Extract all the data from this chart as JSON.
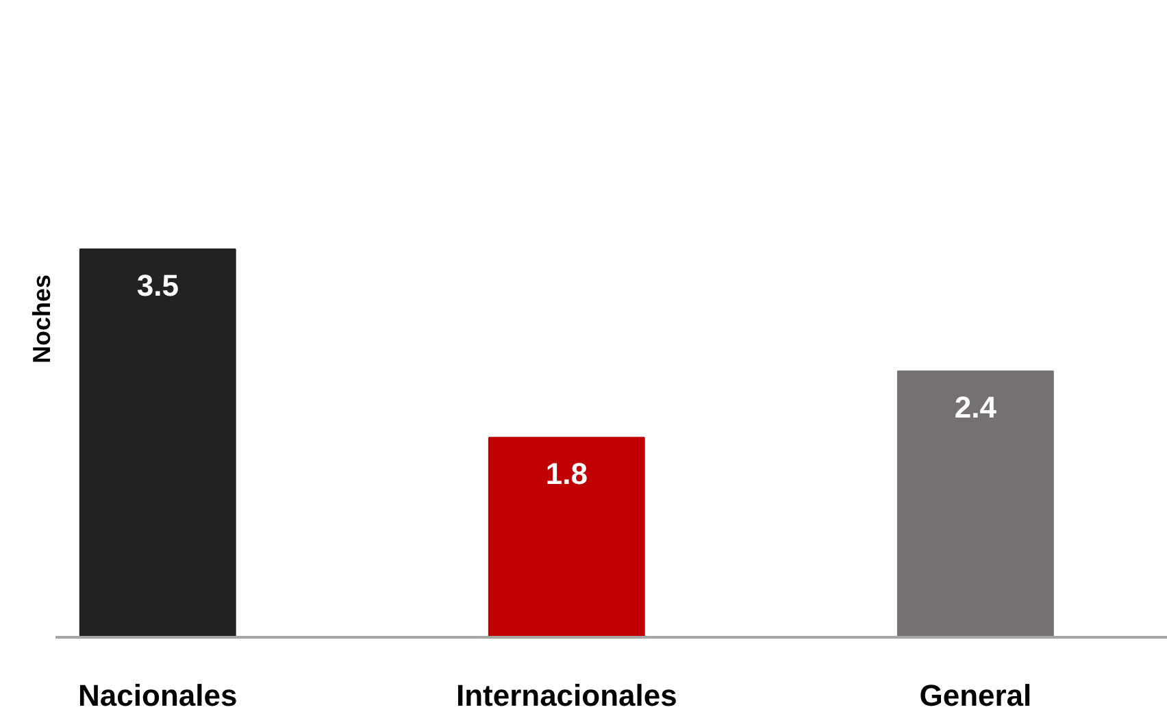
{
  "chart_data": {
    "type": "bar",
    "ylabel": "Noches",
    "categories": [
      "Nacionales",
      "Internacionales",
      "General"
    ],
    "values": [
      3.5,
      1.8,
      2.4
    ],
    "colors": [
      "#222222",
      "#c00000",
      "#767171"
    ],
    "data_labels": true
  }
}
